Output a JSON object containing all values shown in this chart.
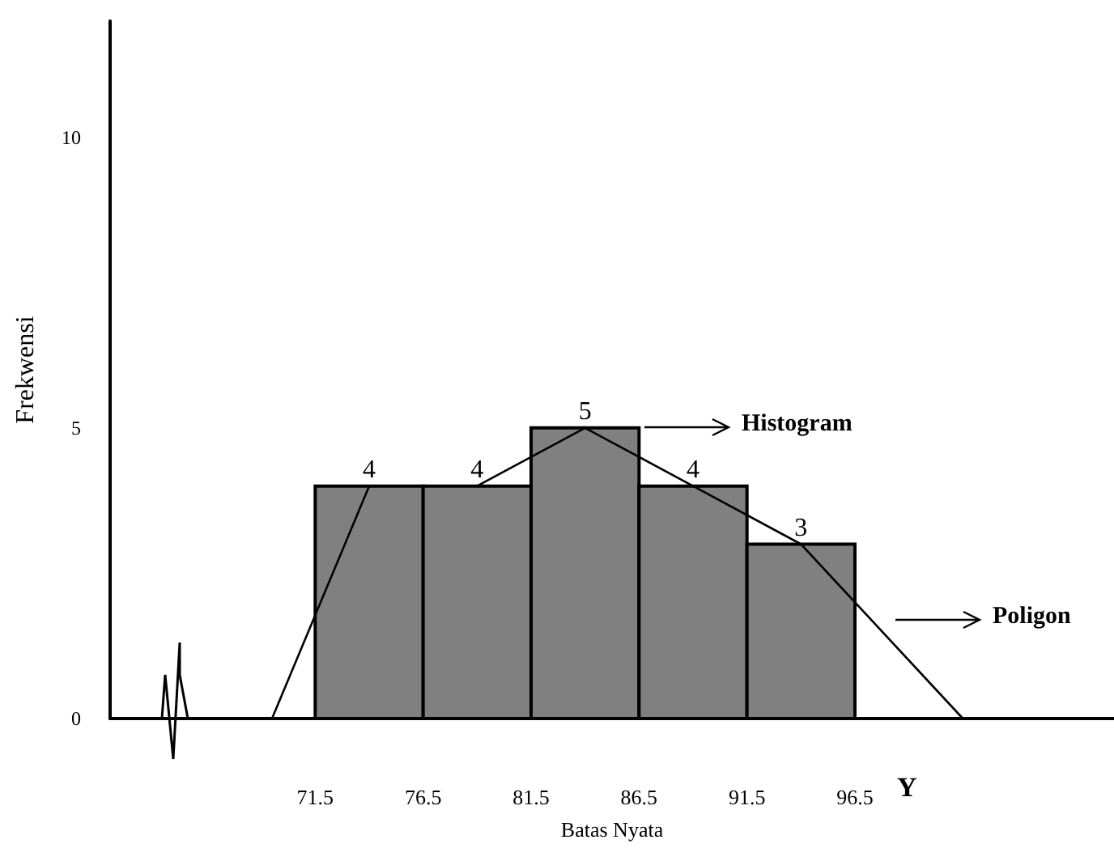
{
  "chart_data": {
    "type": "histogram",
    "xlabel": "Batas Nyata",
    "ylabel": "Frekwensi",
    "series": [
      {
        "bins": [
          71.5,
          76.5,
          81.5,
          86.5,
          91.5,
          96.5
        ],
        "values": [
          4,
          4,
          5,
          4,
          3
        ],
        "color": "#808080",
        "value_labels": [
          "4",
          "4",
          "5",
          "4",
          "3"
        ]
      },
      {
        "type": "line",
        "x": [
          69.5,
          74,
          79,
          84,
          89,
          94,
          101.5
        ],
        "values": [
          0,
          4,
          4,
          5,
          4,
          3,
          0
        ],
        "color": "#000000"
      }
    ],
    "xlim": [
      62,
      108.5
    ],
    "xticks": [
      71.5,
      76.5,
      81.5,
      86.5,
      91.5,
      96.5
    ],
    "ylim": [
      0,
      12
    ],
    "yticks": [
      0,
      5,
      10
    ],
    "annotations": [
      "Histogram",
      "Poligon",
      "Y"
    ],
    "grid": false,
    "marker": "none",
    "line_style": "solid"
  }
}
